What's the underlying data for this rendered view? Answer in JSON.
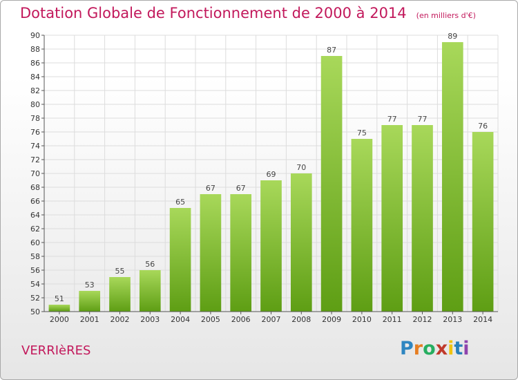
{
  "header": {
    "title": "Dotation Globale de Fonctionnement de 2000 à 2014",
    "subtitle": "(en milliers d'€)"
  },
  "footer": {
    "city": "VERRIèRES",
    "logo_letters": [
      {
        "char": "P",
        "color": "#2e86c1"
      },
      {
        "char": "r",
        "color": "#e67e22"
      },
      {
        "char": "o",
        "color": "#27ae60"
      },
      {
        "char": "x",
        "color": "#c0392b"
      },
      {
        "char": "i",
        "color": "#f1c40f"
      },
      {
        "char": "t",
        "color": "#2980b9"
      },
      {
        "char": "i",
        "color": "#8e44ad"
      }
    ]
  },
  "chart_data": {
    "type": "bar",
    "categories": [
      "2000",
      "2001",
      "2002",
      "2003",
      "2004",
      "2005",
      "2006",
      "2007",
      "2008",
      "2009",
      "2010",
      "2011",
      "2012",
      "2013",
      "2014"
    ],
    "values": [
      51,
      53,
      55,
      56,
      65,
      67,
      67,
      69,
      70,
      87,
      75,
      77,
      77,
      89,
      76
    ],
    "ylim": [
      50,
      90
    ],
    "ytick_step": 2,
    "grid": true,
    "bar_color_top": "#a8d85a",
    "bar_color_bottom": "#5e9e14",
    "title_color": "#c2185b"
  }
}
